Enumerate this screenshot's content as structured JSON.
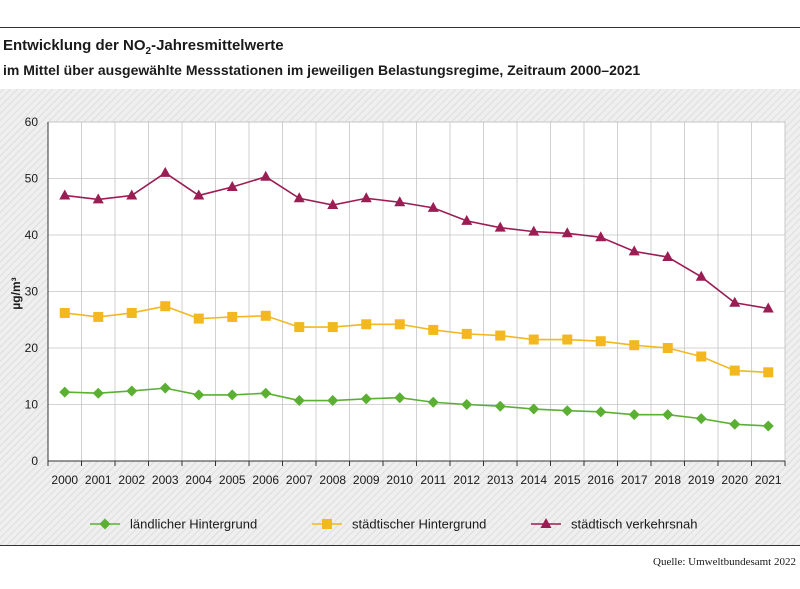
{
  "header": {
    "title_main": "Entwicklung der NO",
    "title_sub": "2",
    "title_end": "-Jahresmittelwerte",
    "subtitle": "im Mittel über ausgewählte Messstationen im jeweiligen Belastungsregime, Zeitraum 2000–2021"
  },
  "footer": {
    "source": "Quelle: Umweltbundesamt 2022"
  },
  "chart_data": {
    "type": "line",
    "title": "Entwicklung der NO₂-Jahresmittelwerte",
    "subtitle": "im Mittel über ausgewählte Messstationen im jeweiligen Belastungsregime, Zeitraum 2000–2021",
    "xlabel": "",
    "ylabel": "µg/m³",
    "ylim": [
      0,
      60
    ],
    "yticks": [
      "0",
      "10",
      "20",
      "30",
      "40",
      "50",
      "60"
    ],
    "grid": true,
    "legend_position": "bottom",
    "categories": [
      "2000",
      "2001",
      "2002",
      "2003",
      "2004",
      "2005",
      "2006",
      "2007",
      "2008",
      "2009",
      "2010",
      "2011",
      "2012",
      "2013",
      "2014",
      "2015",
      "2016",
      "2017",
      "2018",
      "2019",
      "2020",
      "2021"
    ],
    "series": [
      {
        "name": "ländlicher Hintergrund",
        "color": "#5bb033",
        "marker": "diamond",
        "values": [
          12.2,
          12.0,
          12.4,
          12.9,
          11.7,
          11.7,
          12.0,
          10.7,
          10.7,
          11.0,
          11.2,
          10.4,
          10.0,
          9.7,
          9.2,
          8.9,
          8.7,
          8.2,
          8.2,
          7.5,
          6.5,
          6.2
        ]
      },
      {
        "name": "städtischer Hintergrund",
        "color": "#f3b81f",
        "marker": "square",
        "values": [
          26.2,
          25.5,
          26.2,
          27.4,
          25.2,
          25.5,
          25.7,
          23.7,
          23.7,
          24.2,
          24.2,
          23.2,
          22.5,
          22.2,
          21.5,
          21.5,
          21.2,
          20.5,
          20.0,
          18.5,
          16.0,
          15.7
        ]
      },
      {
        "name": "städtisch verkehrsnah",
        "color": "#9c1d54",
        "marker": "triangle",
        "values": [
          47.0,
          46.3,
          47.0,
          51.0,
          47.0,
          48.5,
          50.3,
          46.5,
          45.3,
          46.5,
          45.8,
          44.8,
          42.5,
          41.3,
          40.6,
          40.3,
          39.6,
          37.1,
          36.1,
          32.6,
          28.0,
          27.0
        ]
      }
    ]
  }
}
